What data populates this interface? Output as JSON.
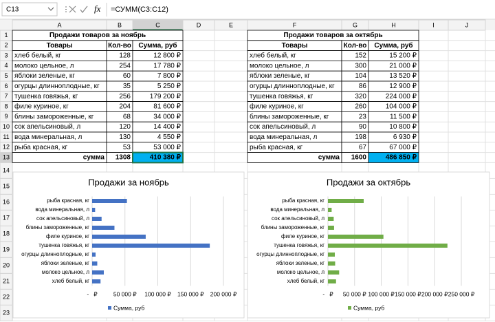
{
  "formula_bar": {
    "cell": "C13",
    "fx": "fx",
    "formula": "=СУММ(C3:C12)"
  },
  "columns": [
    "A",
    "B",
    "C",
    "D",
    "E",
    "F",
    "G",
    "H",
    "I",
    "J"
  ],
  "rows": [
    1,
    2,
    3,
    4,
    5,
    6,
    7,
    8,
    9,
    10,
    11,
    12,
    13,
    14,
    15,
    16,
    17,
    18,
    19,
    20,
    21,
    22,
    23
  ],
  "tables": [
    {
      "title": "Продажи товаров за ноябрь",
      "header": [
        "Товары",
        "Кол-во",
        "Сумма, руб"
      ],
      "rows": [
        [
          "хлеб белый, кг",
          128,
          "12 800 ₽"
        ],
        [
          "молоко цельное, л",
          254,
          "17 780 ₽"
        ],
        [
          "яблоки зеленые, кг",
          60,
          "7 800 ₽"
        ],
        [
          "огурцы длинноплодные, кг",
          35,
          "5 250 ₽"
        ],
        [
          "тушенка говяжья, кг",
          256,
          "179 200 ₽"
        ],
        [
          "филе куриное, кг",
          204,
          "81 600 ₽"
        ],
        [
          "блины замороженные, кг",
          68,
          "34 000 ₽"
        ],
        [
          "сок апельсиновый, л",
          120,
          "14 400 ₽"
        ],
        [
          "вода минеральная, л",
          130,
          "4 550 ₽"
        ],
        [
          "рыба красная, кг",
          53,
          "53 000 ₽"
        ]
      ],
      "total": [
        "сумма",
        1308,
        "410 380 ₽"
      ]
    },
    {
      "title": "Продажи товаров за октябрь",
      "header": [
        "Товары",
        "Кол-во",
        "Сумма, руб"
      ],
      "rows": [
        [
          "хлеб белый, кг",
          152,
          "15 200 ₽"
        ],
        [
          "молоко цельное, л",
          300,
          "21 000 ₽"
        ],
        [
          "яблоки зеленые, кг",
          104,
          "13 520 ₽"
        ],
        [
          "огурцы длинноплодные, кг",
          86,
          "12 900 ₽"
        ],
        [
          "тушенка говяжья, кг",
          320,
          "224 000 ₽"
        ],
        [
          "филе куриное, кг",
          260,
          "104 000 ₽"
        ],
        [
          "блины замороженные, кг",
          23,
          "11 500 ₽"
        ],
        [
          "сок апельсиновый, л",
          90,
          "10 800 ₽"
        ],
        [
          "вода минеральная, л",
          198,
          "6 930 ₽"
        ],
        [
          "рыба красная, кг",
          67,
          "67 000 ₽"
        ]
      ],
      "total": [
        "сумма",
        1600,
        "486 850 ₽"
      ]
    }
  ],
  "chart_data": [
    {
      "type": "bar",
      "orientation": "horizontal",
      "title": "Продажи за ноябрь",
      "categories": [
        "хлеб белый, кг",
        "молоко цельное, л",
        "яблоки зеленые, кг",
        "огурцы длинноплодные, кг",
        "тушенка говяжья, кг",
        "филе куриное, кг",
        "блины замороженные, кг",
        "сок апельсиновый, л",
        "вода минеральная, л",
        "рыба красная, кг"
      ],
      "series": [
        {
          "name": "Сумма, руб",
          "color": "#4472c4",
          "values": [
            12800,
            17780,
            7800,
            5250,
            179200,
            81600,
            34000,
            14400,
            4550,
            53000
          ]
        }
      ],
      "xlim": [
        0,
        200000
      ],
      "xticks": [
        {
          "value": 0,
          "label": "-   ₽"
        },
        {
          "value": 50000,
          "label": "50 000 ₽"
        },
        {
          "value": 100000,
          "label": "100 000 ₽"
        },
        {
          "value": 150000,
          "label": "150 000 ₽"
        },
        {
          "value": 200000,
          "label": "200 000 ₽"
        }
      ],
      "grid": true,
      "legend": "bottom"
    },
    {
      "type": "bar",
      "orientation": "horizontal",
      "title": "Продажи за октябрь",
      "categories": [
        "хлеб белый, кг",
        "молоко цельное, л",
        "яблоки зеленые, кг",
        "огурцы длинноплодные, кг",
        "тушенка говяжья, кг",
        "филе куриное, кг",
        "блины замороженные, кг",
        "сок апельсиновый, л",
        "вода минеральная, л",
        "рыба красная, кг"
      ],
      "series": [
        {
          "name": "Сумма, руб",
          "color": "#70ad47",
          "values": [
            15200,
            21000,
            13520,
            12900,
            224000,
            104000,
            11500,
            10800,
            6930,
            67000
          ]
        }
      ],
      "xlim": [
        0,
        250000
      ],
      "xticks": [
        {
          "value": 0,
          "label": "-   ₽"
        },
        {
          "value": 50000,
          "label": "50 000 ₽"
        },
        {
          "value": 100000,
          "label": "100 000 ₽"
        },
        {
          "value": 150000,
          "label": "150 000 ₽"
        },
        {
          "value": 200000,
          "label": "200 000 ₽"
        },
        {
          "value": 250000,
          "label": "250 000 ₽"
        }
      ],
      "grid": true,
      "legend": "bottom"
    }
  ]
}
